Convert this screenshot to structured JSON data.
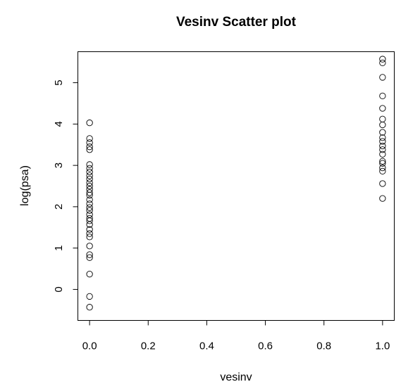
{
  "chart_data": {
    "type": "scatter",
    "title": "Vesinv Scatter plot",
    "xlabel": "vesinv",
    "ylabel": "log(psa)",
    "xlim": [
      -0.04,
      1.04
    ],
    "ylim": [
      -0.75,
      5.75
    ],
    "xticks": [
      0.0,
      0.2,
      0.4,
      0.6,
      0.8,
      1.0
    ],
    "xtick_labels": [
      "0.0",
      "0.2",
      "0.4",
      "0.6",
      "0.8",
      "1.0"
    ],
    "yticks": [
      0,
      1,
      2,
      3,
      4,
      5
    ],
    "ytick_labels": [
      "0",
      "1",
      "2",
      "3",
      "4",
      "5"
    ],
    "grid": false,
    "marker": "open-circle",
    "series": [
      {
        "points": [
          {
            "x": 0,
            "y": -0.43
          },
          {
            "x": 0,
            "y": -0.17
          },
          {
            "x": 0,
            "y": 0.37
          },
          {
            "x": 0,
            "y": 0.77
          },
          {
            "x": 0,
            "y": 0.84
          },
          {
            "x": 0,
            "y": 1.05
          },
          {
            "x": 0,
            "y": 1.27
          },
          {
            "x": 0,
            "y": 1.35
          },
          {
            "x": 0,
            "y": 1.45
          },
          {
            "x": 0,
            "y": 1.57
          },
          {
            "x": 0,
            "y": 1.66
          },
          {
            "x": 0,
            "y": 1.72
          },
          {
            "x": 0,
            "y": 1.81
          },
          {
            "x": 0,
            "y": 1.91
          },
          {
            "x": 0,
            "y": 1.98
          },
          {
            "x": 0,
            "y": 2.07
          },
          {
            "x": 0,
            "y": 2.17
          },
          {
            "x": 0,
            "y": 2.28
          },
          {
            "x": 0,
            "y": 2.34
          },
          {
            "x": 0,
            "y": 2.42
          },
          {
            "x": 0,
            "y": 2.5
          },
          {
            "x": 0,
            "y": 2.58
          },
          {
            "x": 0,
            "y": 2.67
          },
          {
            "x": 0,
            "y": 2.75
          },
          {
            "x": 0,
            "y": 2.84
          },
          {
            "x": 0,
            "y": 2.93
          },
          {
            "x": 0,
            "y": 3.02
          },
          {
            "x": 0,
            "y": 3.38
          },
          {
            "x": 0,
            "y": 3.45
          },
          {
            "x": 0,
            "y": 3.55
          },
          {
            "x": 0,
            "y": 3.65
          },
          {
            "x": 0,
            "y": 4.03
          },
          {
            "x": 1,
            "y": 2.2
          },
          {
            "x": 1,
            "y": 2.56
          },
          {
            "x": 1,
            "y": 2.86
          },
          {
            "x": 1,
            "y": 2.94
          },
          {
            "x": 1,
            "y": 3.05
          },
          {
            "x": 1,
            "y": 3.1
          },
          {
            "x": 1,
            "y": 3.27
          },
          {
            "x": 1,
            "y": 3.38
          },
          {
            "x": 1,
            "y": 3.47
          },
          {
            "x": 1,
            "y": 3.58
          },
          {
            "x": 1,
            "y": 3.67
          },
          {
            "x": 1,
            "y": 3.8
          },
          {
            "x": 1,
            "y": 3.98
          },
          {
            "x": 1,
            "y": 4.12
          },
          {
            "x": 1,
            "y": 4.38
          },
          {
            "x": 1,
            "y": 4.68
          },
          {
            "x": 1,
            "y": 5.13
          },
          {
            "x": 1,
            "y": 5.48
          },
          {
            "x": 1,
            "y": 5.57
          }
        ]
      }
    ]
  }
}
